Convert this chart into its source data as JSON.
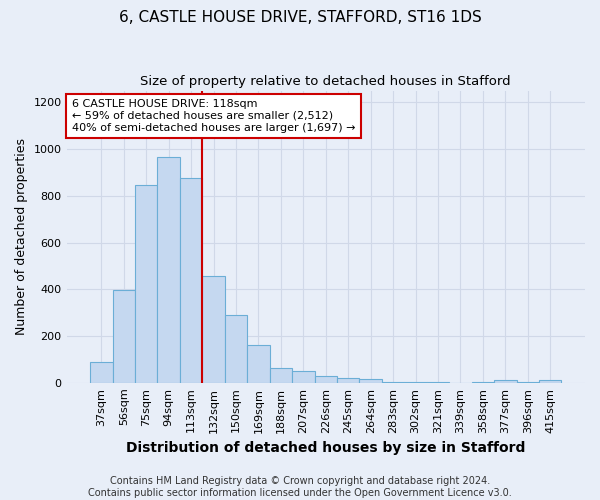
{
  "title": "6, CASTLE HOUSE DRIVE, STAFFORD, ST16 1DS",
  "subtitle": "Size of property relative to detached houses in Stafford",
  "xlabel": "Distribution of detached houses by size in Stafford",
  "ylabel": "Number of detached properties",
  "categories": [
    "37sqm",
    "56sqm",
    "75sqm",
    "94sqm",
    "113sqm",
    "132sqm",
    "150sqm",
    "169sqm",
    "188sqm",
    "207sqm",
    "226sqm",
    "245sqm",
    "264sqm",
    "283sqm",
    "302sqm",
    "321sqm",
    "339sqm",
    "358sqm",
    "377sqm",
    "396sqm",
    "415sqm"
  ],
  "values": [
    90,
    395,
    845,
    965,
    875,
    455,
    290,
    162,
    65,
    50,
    30,
    22,
    15,
    5,
    3,
    2,
    0,
    2,
    10,
    2,
    12
  ],
  "bar_color": "#c5d8f0",
  "bar_edge_color": "#6baed6",
  "vline_color": "#cc0000",
  "vline_x": 4.5,
  "annotation_text_line1": "6 CASTLE HOUSE DRIVE: 118sqm",
  "annotation_text_line2": "← 59% of detached houses are smaller (2,512)",
  "annotation_text_line3": "40% of semi-detached houses are larger (1,697) →",
  "annotation_box_color": "#ffffff",
  "annotation_box_edge_color": "#cc0000",
  "ylim": [
    0,
    1250
  ],
  "yticks": [
    0,
    200,
    400,
    600,
    800,
    1000,
    1200
  ],
  "grid_color": "#d0d8e8",
  "background_color": "#e8eef8",
  "plot_bg_color": "#e8eef8",
  "footer_text_line1": "Contains HM Land Registry data © Crown copyright and database right 2024.",
  "footer_text_line2": "Contains public sector information licensed under the Open Government Licence v3.0.",
  "title_fontsize": 11,
  "subtitle_fontsize": 9.5,
  "xlabel_fontsize": 10,
  "ylabel_fontsize": 9,
  "tick_fontsize": 8,
  "annotation_fontsize": 8,
  "footer_fontsize": 7
}
